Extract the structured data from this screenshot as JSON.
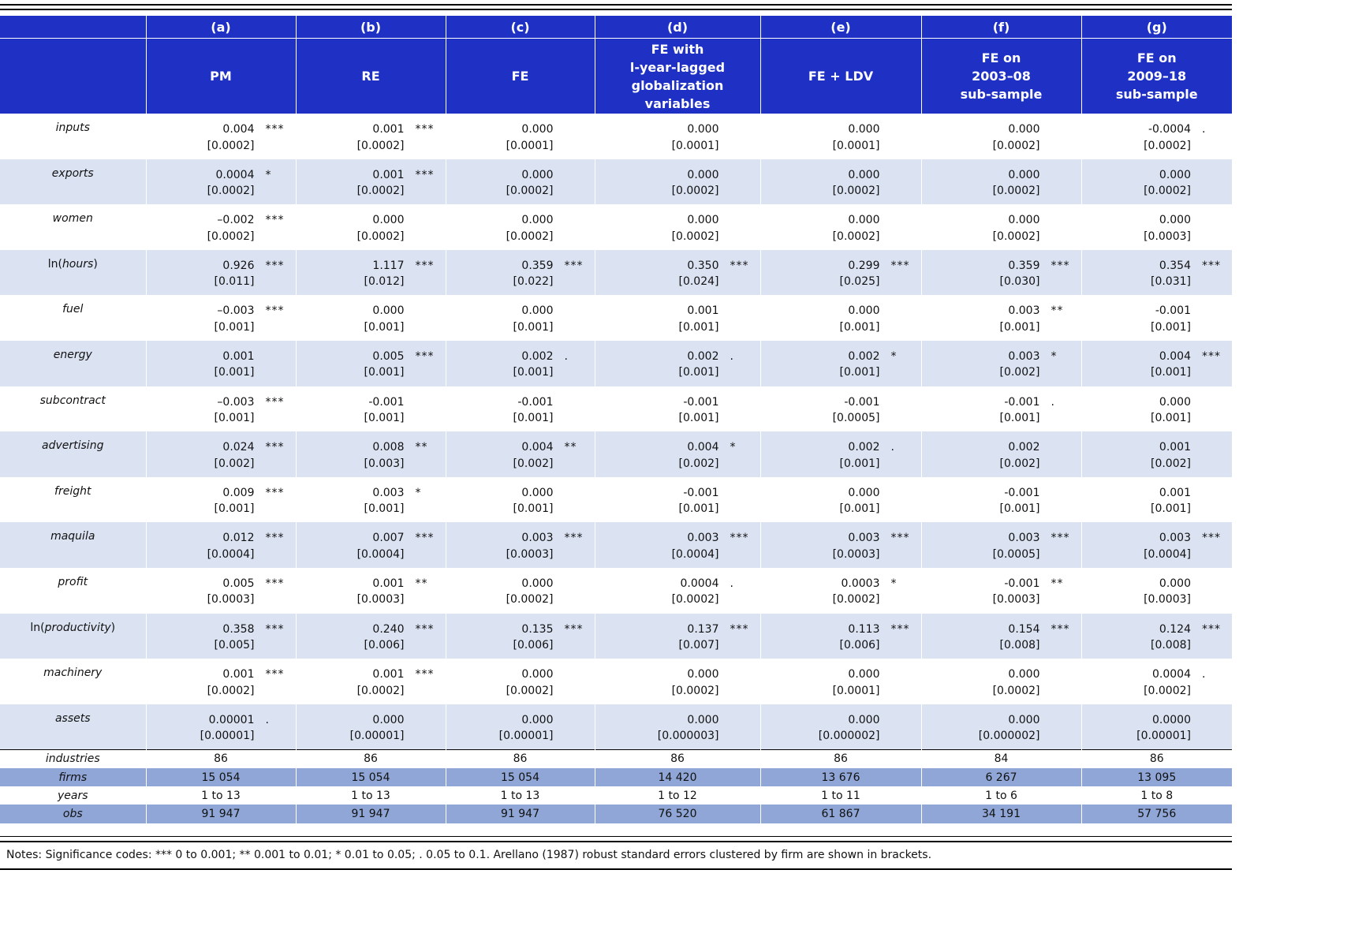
{
  "header": {
    "letters": [
      "(a)",
      "(b)",
      "(c)",
      "(d)",
      "(e)",
      "(f)",
      "(g)"
    ],
    "names": [
      [
        "PM"
      ],
      [
        "RE"
      ],
      [
        "FE"
      ],
      [
        "FE with",
        "l-year-lagged",
        "globalization",
        "variables"
      ],
      [
        "FE + LDV"
      ],
      [
        "FE on",
        "2003–08",
        "sub-sample"
      ],
      [
        "FE on",
        "2009–18",
        "sub-sample"
      ]
    ]
  },
  "rows": [
    {
      "pre": "",
      "var": "inputs",
      "post": "",
      "cells": [
        [
          "0.004",
          "[0.0002]",
          "***"
        ],
        [
          "0.001",
          "[0.0002]",
          "***"
        ],
        [
          "0.000",
          "[0.0001]",
          ""
        ],
        [
          "0.000",
          "[0.0001]",
          ""
        ],
        [
          "0.000",
          "[0.0001]",
          ""
        ],
        [
          "0.000",
          "[0.0002]",
          ""
        ],
        [
          "-0.0004",
          "[0.0002]",
          "."
        ]
      ]
    },
    {
      "pre": "",
      "var": "exports",
      "post": "",
      "cells": [
        [
          "0.0004",
          "[0.0002]",
          "*"
        ],
        [
          "0.001",
          "[0.0002]",
          "***"
        ],
        [
          "0.000",
          "[0.0002]",
          ""
        ],
        [
          "0.000",
          "[0.0002]",
          ""
        ],
        [
          "0.000",
          "[0.0002]",
          ""
        ],
        [
          "0.000",
          "[0.0002]",
          ""
        ],
        [
          "0.000",
          "[0.0002]",
          ""
        ]
      ]
    },
    {
      "pre": "",
      "var": "women",
      "post": "",
      "cells": [
        [
          "–0.002",
          "[0.0002]",
          "***"
        ],
        [
          "0.000",
          "[0.0002]",
          ""
        ],
        [
          "0.000",
          "[0.0002]",
          ""
        ],
        [
          "0.000",
          "[0.0002]",
          ""
        ],
        [
          "0.000",
          "[0.0002]",
          ""
        ],
        [
          "0.000",
          "[0.0002]",
          ""
        ],
        [
          "0.000",
          "[0.0003]",
          ""
        ]
      ]
    },
    {
      "pre": "ln(",
      "var": "hours",
      "post": ")",
      "cells": [
        [
          "0.926",
          "[0.011]",
          "***"
        ],
        [
          "1.117",
          "[0.012]",
          "***"
        ],
        [
          "0.359",
          "[0.022]",
          "***"
        ],
        [
          "0.350",
          "[0.024]",
          "***"
        ],
        [
          "0.299",
          "[0.025]",
          "***"
        ],
        [
          "0.359",
          "[0.030]",
          "***"
        ],
        [
          "0.354",
          "[0.031]",
          "***"
        ]
      ]
    },
    {
      "pre": "",
      "var": "fuel",
      "post": "",
      "cells": [
        [
          "–0.003",
          "[0.001]",
          "***"
        ],
        [
          "0.000",
          "[0.001]",
          ""
        ],
        [
          "0.000",
          "[0.001]",
          ""
        ],
        [
          "0.001",
          "[0.001]",
          ""
        ],
        [
          "0.000",
          "[0.001]",
          ""
        ],
        [
          "0.003",
          "[0.001]",
          "**"
        ],
        [
          "-0.001",
          "[0.001]",
          ""
        ]
      ]
    },
    {
      "pre": "",
      "var": "energy",
      "post": "",
      "cells": [
        [
          "0.001",
          "[0.001]",
          ""
        ],
        [
          "0.005",
          "[0.001]",
          "***"
        ],
        [
          "0.002",
          "[0.001]",
          "."
        ],
        [
          "0.002",
          "[0.001]",
          "."
        ],
        [
          "0.002",
          "[0.001]",
          "*"
        ],
        [
          "0.003",
          "[0.002]",
          "*"
        ],
        [
          "0.004",
          "[0.001]",
          "***"
        ]
      ]
    },
    {
      "pre": "",
      "var": "subcontract",
      "post": "",
      "cells": [
        [
          "–0.003",
          "[0.001]",
          "***"
        ],
        [
          "-0.001",
          "[0.001]",
          ""
        ],
        [
          "-0.001",
          "[0.001]",
          ""
        ],
        [
          "-0.001",
          "[0.001]",
          ""
        ],
        [
          "-0.001",
          "[0.0005]",
          ""
        ],
        [
          "-0.001",
          "[0.001]",
          "."
        ],
        [
          "0.000",
          "[0.001]",
          ""
        ]
      ]
    },
    {
      "pre": "",
      "var": "advertising",
      "post": "",
      "cells": [
        [
          "0.024",
          "[0.002]",
          "***"
        ],
        [
          "0.008",
          "[0.003]",
          "**"
        ],
        [
          "0.004",
          "[0.002]",
          "**"
        ],
        [
          "0.004",
          "[0.002]",
          "*"
        ],
        [
          "0.002",
          "[0.001]",
          "."
        ],
        [
          "0.002",
          "[0.002]",
          ""
        ],
        [
          "0.001",
          "[0.002]",
          ""
        ]
      ]
    },
    {
      "pre": "",
      "var": "freight",
      "post": "",
      "cells": [
        [
          "0.009",
          "[0.001]",
          "***"
        ],
        [
          "0.003",
          "[0.001]",
          "*"
        ],
        [
          "0.000",
          "[0.001]",
          ""
        ],
        [
          "-0.001",
          "[0.001]",
          ""
        ],
        [
          "0.000",
          "[0.001]",
          ""
        ],
        [
          "-0.001",
          "[0.001]",
          ""
        ],
        [
          "0.001",
          "[0.001]",
          ""
        ]
      ]
    },
    {
      "pre": "",
      "var": "maquila",
      "post": "",
      "cells": [
        [
          "0.012",
          "[0.0004]",
          "***"
        ],
        [
          "0.007",
          "[0.0004]",
          "***"
        ],
        [
          "0.003",
          "[0.0003]",
          "***"
        ],
        [
          "0.003",
          "[0.0004]",
          "***"
        ],
        [
          "0.003",
          "[0.0003]",
          "***"
        ],
        [
          "0.003",
          "[0.0005]",
          "***"
        ],
        [
          "0.003",
          "[0.0004]",
          "***"
        ]
      ]
    },
    {
      "pre": "",
      "var": "profit",
      "post": "",
      "cells": [
        [
          "0.005",
          "[0.0003]",
          "***"
        ],
        [
          "0.001",
          "[0.0003]",
          "**"
        ],
        [
          "0.000",
          "[0.0002]",
          ""
        ],
        [
          "0.0004",
          "[0.0002]",
          "."
        ],
        [
          "0.0003",
          "[0.0002]",
          "*"
        ],
        [
          "-0.001",
          "[0.0003]",
          "**"
        ],
        [
          "0.000",
          "[0.0003]",
          ""
        ]
      ]
    },
    {
      "pre": "ln(",
      "var": "productivity",
      "post": ")",
      "cells": [
        [
          "0.358",
          "[0.005]",
          "***"
        ],
        [
          "0.240",
          "[0.006]",
          "***"
        ],
        [
          "0.135",
          "[0.006]",
          "***"
        ],
        [
          "0.137",
          "[0.007]",
          "***"
        ],
        [
          "0.113",
          "[0.006]",
          "***"
        ],
        [
          "0.154",
          "[0.008]",
          "***"
        ],
        [
          "0.124",
          "[0.008]",
          "***"
        ]
      ]
    },
    {
      "pre": "",
      "var": "machinery",
      "post": "",
      "cells": [
        [
          "0.001",
          "[0.0002]",
          "***"
        ],
        [
          "0.001",
          "[0.0002]",
          "***"
        ],
        [
          "0.000",
          "[0.0002]",
          ""
        ],
        [
          "0.000",
          "[0.0002]",
          ""
        ],
        [
          "0.000",
          "[0.0001]",
          ""
        ],
        [
          "0.000",
          "[0.0002]",
          ""
        ],
        [
          "0.0004",
          "[0.0002]",
          "."
        ]
      ]
    },
    {
      "pre": "",
      "var": "assets",
      "post": "",
      "cells": [
        [
          "0.00001",
          "[0.00001]",
          "."
        ],
        [
          "0.000",
          "[0.00001]",
          ""
        ],
        [
          "0.000",
          "[0.00001]",
          ""
        ],
        [
          "0.000",
          "[0.000003]",
          ""
        ],
        [
          "0.000",
          "[0.000002]",
          ""
        ],
        [
          "0.000",
          "[0.000002]",
          ""
        ],
        [
          "0.0000",
          "[0.00001]",
          ""
        ]
      ]
    }
  ],
  "stats": [
    {
      "label": "industries",
      "values": [
        "86",
        "86",
        "86",
        "86",
        "86",
        "84",
        "86"
      ]
    },
    {
      "label": "firms",
      "values": [
        "15 054",
        "15 054",
        "15 054",
        "14 420",
        "13 676",
        "6 267",
        "13 095"
      ]
    },
    {
      "label": "years",
      "values": [
        "1 to 13",
        "1 to 13",
        "1 to 13",
        "1 to 12",
        "1 to 11",
        "1 to 6",
        "1 to 8"
      ]
    },
    {
      "label": "obs",
      "values": [
        "91 947",
        "91 947",
        "91 947",
        "76 520",
        "61 867",
        "34 191",
        "57 756"
      ]
    }
  ],
  "notes": "Notes: Significance codes: *** 0 to 0.001; ** 0.001 to 0.01; * 0.01 to 0.05; . 0.05 to 0.1. Arellano (1987) robust standard errors clustered by firm are shown in brackets.",
  "colors": {
    "header_bg": "#1f31c4",
    "row_alt": "#dbe3f3",
    "stat_shade": "#8fa6d6"
  }
}
